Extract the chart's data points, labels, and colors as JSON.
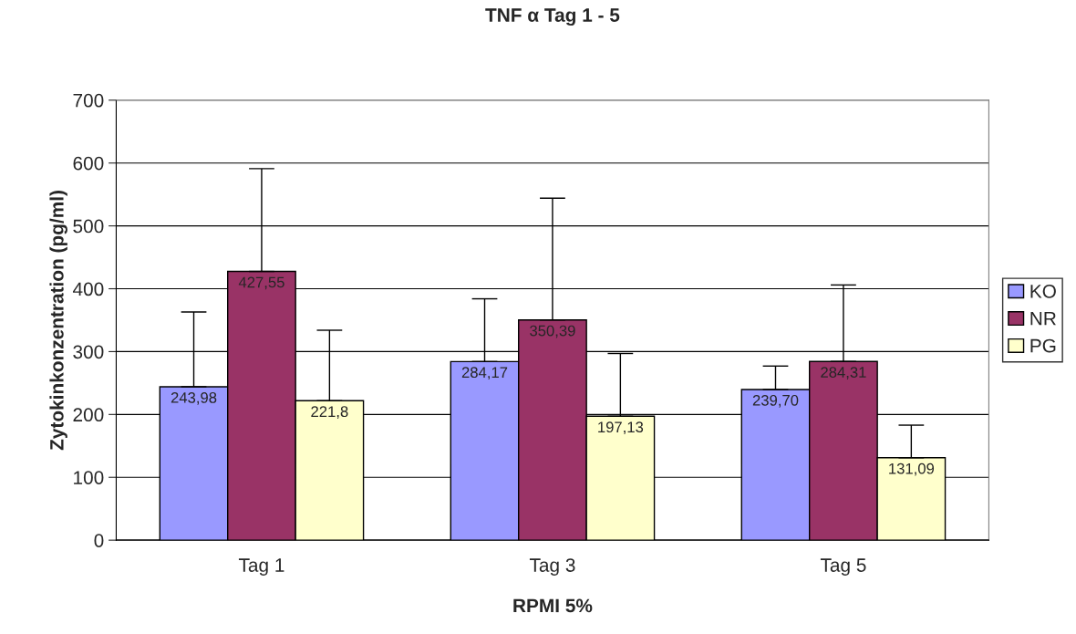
{
  "chart_data": {
    "type": "bar",
    "title": "TNF α Tag 1 - 5",
    "xlabel": "RPMI 5%",
    "ylabel": "Zytokinkonzentration (pg/ml)",
    "categories": [
      "Tag 1",
      "Tag 3",
      "Tag 5"
    ],
    "series": [
      {
        "name": "KO",
        "color": "#9999ff",
        "values": [
          243.98,
          284.17,
          239.7
        ],
        "value_labels": [
          "243,98",
          "284,17",
          "239,70"
        ],
        "errors": [
          [
            243.98,
            363
          ],
          [
            284.17,
            384
          ],
          [
            239.7,
            277
          ]
        ]
      },
      {
        "name": "NR",
        "color": "#993366",
        "values": [
          427.55,
          350.39,
          284.31
        ],
        "value_labels": [
          "427,55",
          "350,39",
          "284,31"
        ],
        "errors": [
          [
            427.55,
            591
          ],
          [
            350.39,
            544
          ],
          [
            284.31,
            406
          ]
        ]
      },
      {
        "name": "PG",
        "color": "#ffffcc",
        "values": [
          221.8,
          197.13,
          131.09
        ],
        "value_labels": [
          "221,8",
          "197,13",
          "131,09"
        ],
        "errors": [
          [
            221.8,
            334
          ],
          [
            197.13,
            297
          ],
          [
            131.09,
            183
          ]
        ]
      }
    ],
    "ylim": [
      0,
      700
    ],
    "yticks": [
      0,
      100,
      200,
      300,
      400,
      500,
      600,
      700
    ],
    "grid": "y",
    "legend": "right"
  }
}
